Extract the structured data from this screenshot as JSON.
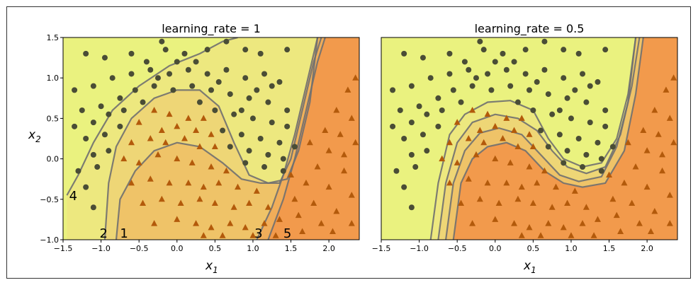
{
  "figure": {
    "ylabel": "x",
    "ylabel_sub": "2",
    "xlabel": "x",
    "xlabel_sub": "1"
  },
  "chart_data": [
    {
      "type": "scatter",
      "title": "learning_rate = 1",
      "xlim": [
        -1.5,
        2.4
      ],
      "ylim": [
        -1.0,
        1.5
      ],
      "xticks": [
        "−1.5",
        "−1.0",
        "−0.5",
        "0.0",
        "0.5",
        "1.0",
        "1.5",
        "2.0"
      ],
      "xtick_values": [
        -1.5,
        -1.0,
        -0.5,
        0.0,
        0.5,
        1.0,
        1.5,
        2.0
      ],
      "yticks": [
        "−1.0",
        "−0.5",
        "0.0",
        "0.5",
        "1.0",
        "1.5"
      ],
      "ytick_values": [
        -1.0,
        -0.5,
        0.0,
        0.5,
        1.0,
        1.5
      ],
      "region_colors": [
        "#eaf27f",
        "#efe07f",
        "#eec670",
        "#f1b45c",
        "#f29a4c"
      ],
      "boundaries": [
        [
          [
            -1.45,
            -0.45
          ],
          [
            -1.3,
            -0.2
          ],
          [
            -1.1,
            0.2
          ],
          [
            -0.85,
            0.6
          ],
          [
            -0.5,
            0.9
          ],
          [
            -0.1,
            1.15
          ],
          [
            0.3,
            1.3
          ],
          [
            0.6,
            1.45
          ],
          [
            0.8,
            1.5
          ]
        ],
        [
          [
            -0.95,
            -1.0
          ],
          [
            -0.9,
            -0.3
          ],
          [
            -0.8,
            0.15
          ],
          [
            -0.6,
            0.5
          ],
          [
            -0.3,
            0.75
          ],
          [
            0.0,
            0.85
          ],
          [
            0.3,
            0.85
          ],
          [
            0.55,
            0.65
          ],
          [
            0.75,
            0.2
          ],
          [
            0.95,
            -0.2
          ],
          [
            1.2,
            -0.3
          ],
          [
            1.45,
            -0.25
          ],
          [
            1.6,
            0.1
          ],
          [
            1.75,
            0.7
          ],
          [
            1.85,
            1.5
          ]
        ],
        [
          [
            -0.8,
            -1.0
          ],
          [
            -0.75,
            -0.5
          ],
          [
            -0.55,
            -0.15
          ],
          [
            -0.3,
            0.1
          ],
          [
            0.0,
            0.2
          ],
          [
            0.3,
            0.15
          ],
          [
            0.6,
            -0.05
          ],
          [
            0.85,
            -0.25
          ],
          [
            1.1,
            -0.3
          ],
          [
            1.35,
            -0.3
          ],
          [
            1.5,
            0.0
          ],
          [
            1.65,
            0.6
          ],
          [
            1.8,
            1.2
          ],
          [
            1.9,
            1.5
          ]
        ],
        [
          [
            1.05,
            -1.0
          ],
          [
            1.25,
            -0.6
          ],
          [
            1.4,
            -0.2
          ],
          [
            1.55,
            0.3
          ],
          [
            1.7,
            0.9
          ],
          [
            1.85,
            1.5
          ]
        ],
        [
          [
            1.2,
            -1.0
          ],
          [
            1.4,
            -0.5
          ],
          [
            1.55,
            0.0
          ],
          [
            1.7,
            0.6
          ],
          [
            1.85,
            1.2
          ],
          [
            1.95,
            1.5
          ]
        ]
      ],
      "boundary_labels": [
        {
          "text": "4",
          "x": -1.42,
          "y": -0.46
        },
        {
          "text": "2",
          "x": -1.02,
          "y": -0.92
        },
        {
          "text": "1",
          "x": -0.75,
          "y": -0.92
        },
        {
          "text": "3",
          "x": 1.02,
          "y": -0.92
        },
        {
          "text": "5",
          "x": 1.4,
          "y": -0.92
        }
      ]
    },
    {
      "type": "scatter",
      "title": "learning_rate = 0.5",
      "xlim": [
        -1.5,
        2.4
      ],
      "ylim": [
        -1.0,
        1.5
      ],
      "xticks": [
        "−1.5",
        "−1.0",
        "−0.5",
        "0.0",
        "0.5",
        "1.0",
        "1.5",
        "2.0"
      ],
      "xtick_values": [
        -1.5,
        -1.0,
        -0.5,
        0.0,
        0.5,
        1.0,
        1.5,
        2.0
      ],
      "region_colors": [
        "#eaf27f",
        "#efe07f",
        "#eec670",
        "#f1b45c",
        "#f29a4c"
      ],
      "boundaries": [
        [
          [
            -0.85,
            -1.0
          ],
          [
            -0.75,
            -0.3
          ],
          [
            -0.6,
            0.3
          ],
          [
            -0.4,
            0.55
          ],
          [
            -0.1,
            0.7
          ],
          [
            0.2,
            0.72
          ],
          [
            0.5,
            0.6
          ],
          [
            0.7,
            0.25
          ],
          [
            0.9,
            0.0
          ],
          [
            1.15,
            -0.1
          ],
          [
            1.4,
            -0.05
          ],
          [
            1.6,
            0.25
          ],
          [
            1.75,
            0.8
          ],
          [
            1.85,
            1.5
          ]
        ],
        [
          [
            -0.75,
            -1.0
          ],
          [
            -0.65,
            -0.3
          ],
          [
            -0.5,
            0.2
          ],
          [
            -0.3,
            0.45
          ],
          [
            0.0,
            0.55
          ],
          [
            0.3,
            0.5
          ],
          [
            0.55,
            0.35
          ],
          [
            0.75,
            0.1
          ],
          [
            0.95,
            -0.1
          ],
          [
            1.2,
            -0.18
          ],
          [
            1.45,
            -0.1
          ],
          [
            1.65,
            0.3
          ],
          [
            1.8,
            0.9
          ],
          [
            1.9,
            1.5
          ]
        ],
        [
          [
            -0.65,
            -1.0
          ],
          [
            -0.55,
            -0.3
          ],
          [
            -0.4,
            0.1
          ],
          [
            -0.2,
            0.32
          ],
          [
            0.05,
            0.38
          ],
          [
            0.35,
            0.3
          ],
          [
            0.6,
            0.05
          ],
          [
            0.85,
            -0.2
          ],
          [
            1.1,
            -0.28
          ],
          [
            1.4,
            -0.22
          ],
          [
            1.6,
            0.15
          ],
          [
            1.75,
            0.7
          ],
          [
            1.85,
            1.5
          ]
        ],
        [
          [
            -0.55,
            -1.0
          ],
          [
            -0.45,
            -0.3
          ],
          [
            -0.3,
            0.0
          ],
          [
            -0.1,
            0.15
          ],
          [
            0.15,
            0.2
          ],
          [
            0.4,
            0.1
          ],
          [
            0.65,
            -0.15
          ],
          [
            0.9,
            -0.3
          ],
          [
            1.15,
            -0.35
          ],
          [
            1.45,
            -0.3
          ],
          [
            1.7,
            0.1
          ],
          [
            1.85,
            0.8
          ],
          [
            1.95,
            1.5
          ]
        ]
      ]
    }
  ],
  "points": {
    "circles": [
      [
        -1.2,
        1.3
      ],
      [
        -0.95,
        1.25
      ],
      [
        -0.6,
        1.3
      ],
      [
        -0.4,
        1.2
      ],
      [
        -0.15,
        1.35
      ],
      [
        0.1,
        1.3
      ],
      [
        0.4,
        1.35
      ],
      [
        0.65,
        1.45
      ],
      [
        0.9,
        1.35
      ],
      [
        1.1,
        1.3
      ],
      [
        1.45,
        1.35
      ],
      [
        -1.35,
        0.85
      ],
      [
        -1.1,
        0.9
      ],
      [
        -0.85,
        1.0
      ],
      [
        -0.6,
        1.05
      ],
      [
        -0.35,
        1.1
      ],
      [
        -0.1,
        1.05
      ],
      [
        0.15,
        1.1
      ],
      [
        0.4,
        1.05
      ],
      [
        0.65,
        1.1
      ],
      [
        0.9,
        1.0
      ],
      [
        1.15,
        1.05
      ],
      [
        1.35,
        0.95
      ],
      [
        -1.25,
        0.6
      ],
      [
        -1.0,
        0.65
      ],
      [
        -0.75,
        0.75
      ],
      [
        -0.55,
        0.85
      ],
      [
        -0.3,
        0.9
      ],
      [
        -0.05,
        0.85
      ],
      [
        0.2,
        0.9
      ],
      [
        0.45,
        0.85
      ],
      [
        0.7,
        0.8
      ],
      [
        0.95,
        0.75
      ],
      [
        1.2,
        0.7
      ],
      [
        1.45,
        0.6
      ],
      [
        -1.35,
        0.4
      ],
      [
        -1.1,
        0.45
      ],
      [
        -0.9,
        0.55
      ],
      [
        -0.7,
        0.6
      ],
      [
        0.5,
        0.6
      ],
      [
        0.75,
        0.55
      ],
      [
        1.0,
        0.5
      ],
      [
        1.25,
        0.45
      ],
      [
        1.45,
        0.4
      ],
      [
        -1.2,
        0.25
      ],
      [
        -0.95,
        0.3
      ],
      [
        -0.75,
        0.4
      ],
      [
        0.6,
        0.35
      ],
      [
        0.85,
        0.3
      ],
      [
        1.1,
        0.25
      ],
      [
        1.35,
        0.2
      ],
      [
        1.55,
        0.15
      ],
      [
        -1.1,
        0.05
      ],
      [
        -0.9,
        0.1
      ],
      [
        0.7,
        0.15
      ],
      [
        0.95,
        0.1
      ],
      [
        1.2,
        0.05
      ],
      [
        1.4,
        0.0
      ],
      [
        -1.3,
        -0.15
      ],
      [
        -1.05,
        -0.1
      ],
      [
        0.9,
        -0.05
      ],
      [
        1.15,
        -0.1
      ],
      [
        1.4,
        -0.15
      ],
      [
        -1.55,
        -0.1
      ],
      [
        -1.2,
        -0.35
      ],
      [
        -1.1,
        -0.6
      ],
      [
        0.0,
        1.2
      ],
      [
        0.25,
        1.2
      ],
      [
        -0.25,
        1.0
      ],
      [
        0.55,
        0.95
      ],
      [
        0.3,
        0.7
      ],
      [
        -0.45,
        0.7
      ],
      [
        0.85,
        0.6
      ],
      [
        1.05,
        0.85
      ],
      [
        1.25,
        0.9
      ],
      [
        -0.2,
        1.45
      ]
    ],
    "triangles": [
      [
        -0.3,
        0.6
      ],
      [
        -0.1,
        0.55
      ],
      [
        0.15,
        0.5
      ],
      [
        0.35,
        0.5
      ],
      [
        -0.5,
        0.45
      ],
      [
        -0.2,
        0.35
      ],
      [
        0.0,
        0.4
      ],
      [
        0.25,
        0.35
      ],
      [
        0.45,
        0.3
      ],
      [
        -0.6,
        0.2
      ],
      [
        -0.35,
        0.25
      ],
      [
        -0.15,
        0.2
      ],
      [
        0.1,
        0.25
      ],
      [
        0.3,
        0.15
      ],
      [
        0.5,
        0.15
      ],
      [
        -0.7,
        0.0
      ],
      [
        -0.5,
        -0.05
      ],
      [
        -0.25,
        0.05
      ],
      [
        0.0,
        0.0
      ],
      [
        0.2,
        -0.05
      ],
      [
        0.45,
        -0.1
      ],
      [
        0.65,
        -0.15
      ],
      [
        -0.6,
        -0.3
      ],
      [
        -0.35,
        -0.25
      ],
      [
        -0.1,
        -0.3
      ],
      [
        0.15,
        -0.3
      ],
      [
        0.35,
        -0.35
      ],
      [
        0.55,
        -0.3
      ],
      [
        0.8,
        -0.35
      ],
      [
        1.05,
        -0.4
      ],
      [
        -0.45,
        -0.55
      ],
      [
        -0.2,
        -0.5
      ],
      [
        0.05,
        -0.55
      ],
      [
        0.3,
        -0.5
      ],
      [
        0.5,
        -0.55
      ],
      [
        0.75,
        -0.6
      ],
      [
        0.95,
        -0.55
      ],
      [
        1.2,
        -0.6
      ],
      [
        -0.3,
        -0.8
      ],
      [
        0.0,
        -0.75
      ],
      [
        0.25,
        -0.8
      ],
      [
        0.45,
        -0.85
      ],
      [
        0.7,
        -0.8
      ],
      [
        0.9,
        -0.85
      ],
      [
        1.15,
        -0.8
      ],
      [
        1.35,
        -0.75
      ],
      [
        0.35,
        -0.95
      ],
      [
        0.6,
        -0.95
      ],
      [
        1.0,
        -0.95
      ],
      [
        1.3,
        -0.95
      ],
      [
        1.55,
        -0.5
      ],
      [
        1.7,
        -0.3
      ],
      [
        1.85,
        -0.1
      ],
      [
        2.0,
        0.1
      ],
      [
        2.15,
        0.3
      ],
      [
        2.3,
        0.5
      ],
      [
        1.6,
        -0.7
      ],
      [
        1.8,
        -0.55
      ],
      [
        2.0,
        -0.35
      ],
      [
        2.2,
        -0.15
      ],
      [
        1.75,
        0.2
      ],
      [
        1.95,
        0.35
      ],
      [
        2.1,
        0.6
      ],
      [
        2.25,
        0.85
      ],
      [
        2.35,
        1.0
      ],
      [
        1.65,
        -0.9
      ],
      [
        1.9,
        -0.8
      ],
      [
        2.1,
        -0.65
      ],
      [
        2.3,
        -0.45
      ],
      [
        2.2,
        0.05
      ],
      [
        1.5,
        -0.2
      ],
      [
        2.05,
        -0.9
      ],
      [
        2.3,
        -0.8
      ],
      [
        2.35,
        0.2
      ]
    ]
  }
}
